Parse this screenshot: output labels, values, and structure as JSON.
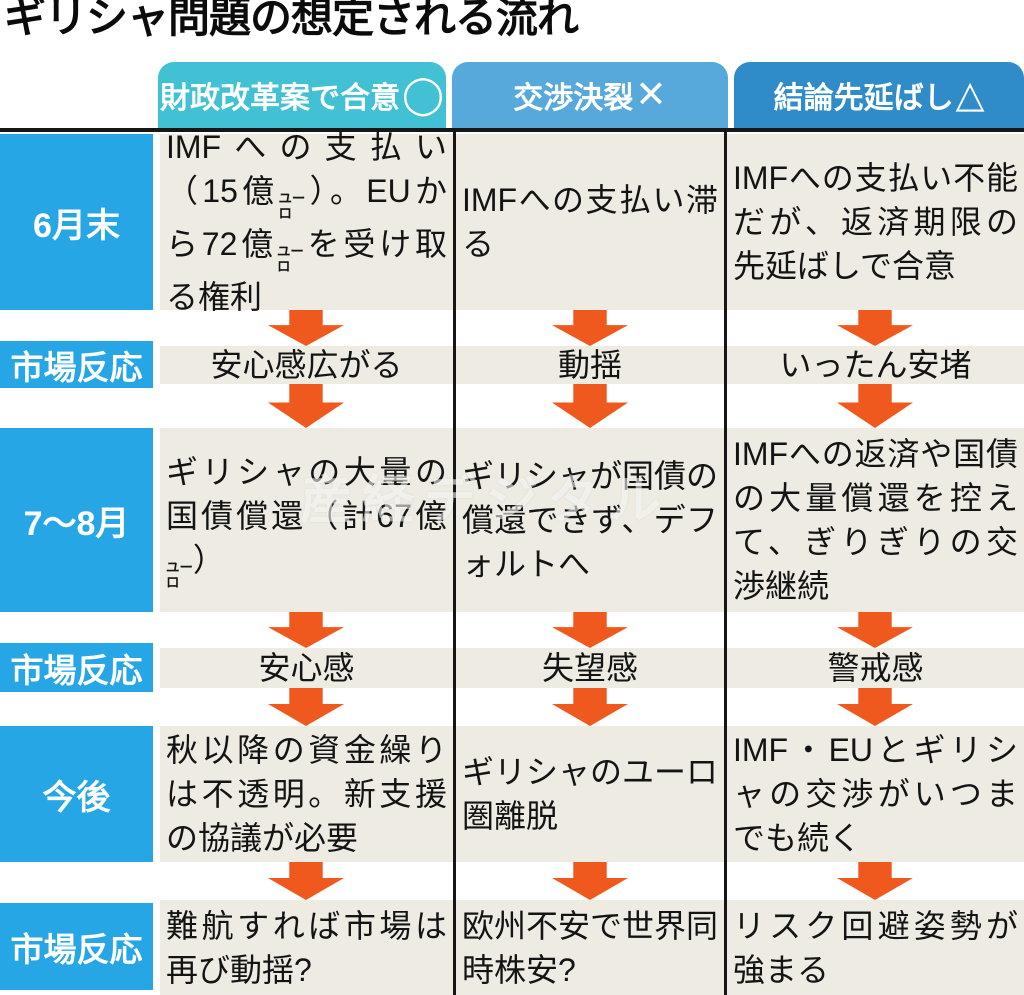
{
  "title": "ギリシャ問題の想定される流れ",
  "watermark": "産経デジタル",
  "colors": {
    "labelBlue": "#27a6e6",
    "col1": "#42c0d4",
    "col2": "#57a9db",
    "col3": "#2f8cc9",
    "beige": "#edebe2",
    "arrowOrange": "#f0591d",
    "line": "#161616"
  },
  "columns": [
    {
      "label": "財政改革案で合意",
      "mark": "◯"
    },
    {
      "label": "交渉決裂",
      "mark": "✕"
    },
    {
      "label": "結論先延ばし",
      "mark": "△"
    }
  ],
  "rows": [
    {
      "label": "6月末",
      "cells": [
        "IMFへの支払い（15億ユーロ）。EUから72億ユーロを受け取る権利",
        "IMFへの支払い滞る",
        "IMFへの支払い不能だが、返済期限の先延ばしで合意"
      ]
    },
    {
      "label": "市場反応",
      "cells": [
        "安心感広がる",
        "動揺",
        "いったん安堵"
      ]
    },
    {
      "label": "7〜8月",
      "cells": [
        "ギリシャの大量の国債償還（計67億ユーロ）",
        "ギリシャが国債の償還できず、デフォルトへ",
        "IMFへの返済や国債の大量償還を控えて、ぎりぎりの交渉継続"
      ]
    },
    {
      "label": "市場反応",
      "cells": [
        "安心感",
        "失望感",
        "警戒感"
      ]
    },
    {
      "label": "今後",
      "cells": [
        "秋以降の資金繰りは不透明。新支援の協議が必要",
        "ギリシャのユーロ圏離脱",
        "IMF・EUとギリシャの交渉がいつまでも続く"
      ]
    },
    {
      "label": "市場反応",
      "cells": [
        "難航すれば市場は再び動揺?",
        "欧州不安で世界同時株安?",
        "リスク回避姿勢が強まる"
      ]
    }
  ]
}
